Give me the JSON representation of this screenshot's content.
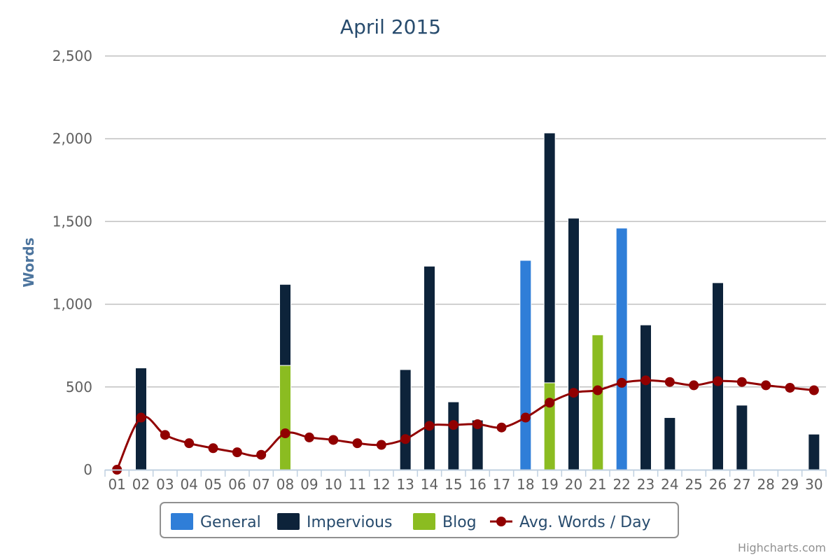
{
  "chart_data": {
    "type": "bar",
    "title": "April 2015",
    "ylabel": "Words",
    "xlabel": "",
    "ylim": [
      0,
      2500
    ],
    "yticks": [
      "0",
      "500",
      "1,000",
      "1,500",
      "2,000",
      "2,500"
    ],
    "ytick_values": [
      0,
      500,
      1000,
      1500,
      2000,
      2500
    ],
    "categories": [
      "01",
      "02",
      "03",
      "04",
      "05",
      "06",
      "07",
      "08",
      "09",
      "10",
      "11",
      "12",
      "13",
      "14",
      "15",
      "16",
      "17",
      "18",
      "19",
      "20",
      "21",
      "22",
      "23",
      "24",
      "25",
      "26",
      "27",
      "28",
      "29",
      "30"
    ],
    "stacked": true,
    "series": [
      {
        "name": "General",
        "kind": "column",
        "color": "#2f7ed8",
        "values": [
          0,
          0,
          0,
          0,
          0,
          0,
          0,
          0,
          0,
          0,
          0,
          0,
          0,
          0,
          0,
          0,
          0,
          1265,
          0,
          0,
          0,
          1460,
          0,
          0,
          0,
          0,
          0,
          0,
          0,
          0
        ]
      },
      {
        "name": "Impervious",
        "kind": "column",
        "color": "#0d233a",
        "values": [
          0,
          615,
          0,
          0,
          0,
          0,
          0,
          490,
          0,
          0,
          0,
          0,
          605,
          1230,
          410,
          300,
          0,
          0,
          1510,
          1520,
          0,
          0,
          875,
          315,
          0,
          1130,
          390,
          0,
          0,
          215
        ]
      },
      {
        "name": "Blog",
        "kind": "column",
        "color": "#8bbc21",
        "values": [
          0,
          0,
          0,
          0,
          0,
          0,
          0,
          630,
          0,
          0,
          0,
          0,
          0,
          0,
          0,
          0,
          0,
          0,
          525,
          0,
          815,
          0,
          0,
          0,
          0,
          0,
          0,
          0,
          0,
          0
        ]
      },
      {
        "name": "Avg. Words / Day",
        "kind": "spline",
        "color": "#910000",
        "values": [
          0,
          315,
          210,
          160,
          130,
          105,
          90,
          220,
          195,
          180,
          160,
          150,
          185,
          265,
          270,
          275,
          255,
          315,
          405,
          465,
          480,
          525,
          540,
          530,
          510,
          535,
          530,
          510,
          495,
          480
        ]
      }
    ],
    "legend": "bottom-center",
    "grid": true
  },
  "credits": "Highcharts.com"
}
